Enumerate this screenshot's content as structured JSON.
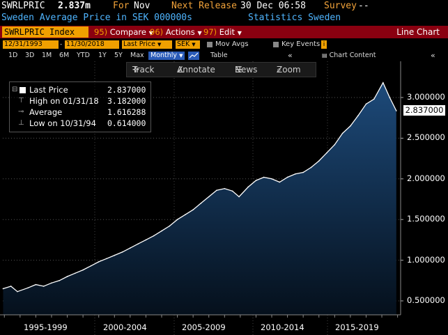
{
  "header": {
    "ticker": "SWRLPRIC",
    "last_value": "2.837m",
    "for_label": "For",
    "for_value": "Nov",
    "next_release_label": "Next Release",
    "next_release_value": "30 Dec 06:58",
    "survey_label": "Survey",
    "survey_value": "--",
    "description": "Sweden Average Price in SEK 000000s",
    "source": "Statistics Sweden"
  },
  "command_bar": {
    "security": "SWRLPRIC Index",
    "compare_num": "95)",
    "compare_label": "Compare",
    "actions_num": "96)",
    "actions_label": "Actions",
    "edit_num": "97)",
    "edit_label": "Edit",
    "chart_type": "Line Chart"
  },
  "controls": {
    "start_date": "12/31/1993",
    "end_date": "11/30/2018",
    "field": "Last Price",
    "currency": "SEK",
    "mov_avgs": "Mov Avgs",
    "key_events": "Key Events",
    "chart_content": "Chart Content",
    "periods": [
      "1D",
      "3D",
      "1M",
      "6M",
      "YTD",
      "1Y",
      "5Y",
      "Max"
    ],
    "frequency": "Monthly",
    "table": "Table"
  },
  "toolbar": {
    "track": "Track",
    "annotate": "Annotate",
    "news": "News",
    "zoom": "Zoom"
  },
  "legend": {
    "last_price_label": "Last Price",
    "last_price_value": "2.837000",
    "high_label": "High on 01/31/18",
    "high_value": "3.182000",
    "average_label": "Average",
    "average_value": "1.616288",
    "low_label": "Low on 10/31/94",
    "low_value": "0.614000"
  },
  "colors": {
    "background": "#000000",
    "accent_orange": "#f0a000",
    "command_bar": "#8a0010",
    "header_blue": "#4fb5ff",
    "series_line": "#ffffff",
    "area_top": "#1d4a7a",
    "area_bottom": "#05101c"
  },
  "chart_data": {
    "type": "area",
    "x_tick_labels": [
      "1995-1999",
      "2000-2004",
      "2005-2009",
      "2010-2014",
      "2015-2019"
    ],
    "y_tick_labels": [
      "0.500000",
      "1.000000",
      "1.500000",
      "2.000000",
      "2.500000",
      "3.000000"
    ],
    "y_ticks": [
      0.5,
      1.0,
      1.5,
      2.0,
      2.5,
      3.0
    ],
    "ylim": [
      0.4,
      3.55
    ],
    "xlim": [
      1993.9,
      2019.15
    ],
    "last_label": "2.837000",
    "series": [
      {
        "name": "Last Price",
        "x": [
          1993.92,
          1994.42,
          1994.83,
          1995.5,
          1996.0,
          1996.5,
          1997.0,
          1997.5,
          1998.0,
          1998.5,
          1999.0,
          1999.5,
          2000.0,
          2000.5,
          2001.0,
          2001.5,
          2002.0,
          2002.5,
          2003.0,
          2003.5,
          2004.0,
          2004.5,
          2005.0,
          2005.5,
          2006.0,
          2006.5,
          2007.0,
          2007.5,
          2008.0,
          2008.5,
          2008.92,
          2009.5,
          2010.0,
          2010.5,
          2011.0,
          2011.5,
          2012.0,
          2012.5,
          2013.0,
          2013.5,
          2014.0,
          2014.5,
          2015.0,
          2015.5,
          2016.0,
          2016.5,
          2017.0,
          2017.5,
          2018.08,
          2018.5,
          2018.92
        ],
        "values": [
          0.65,
          0.68,
          0.614,
          0.66,
          0.7,
          0.68,
          0.72,
          0.75,
          0.8,
          0.84,
          0.88,
          0.93,
          0.98,
          1.02,
          1.06,
          1.1,
          1.15,
          1.2,
          1.25,
          1.3,
          1.36,
          1.42,
          1.5,
          1.56,
          1.62,
          1.7,
          1.78,
          1.86,
          1.88,
          1.85,
          1.78,
          1.9,
          1.98,
          2.02,
          2.0,
          1.96,
          2.02,
          2.06,
          2.08,
          2.14,
          2.22,
          2.32,
          2.42,
          2.56,
          2.65,
          2.78,
          2.92,
          2.98,
          3.182,
          3.0,
          2.837
        ]
      }
    ]
  }
}
